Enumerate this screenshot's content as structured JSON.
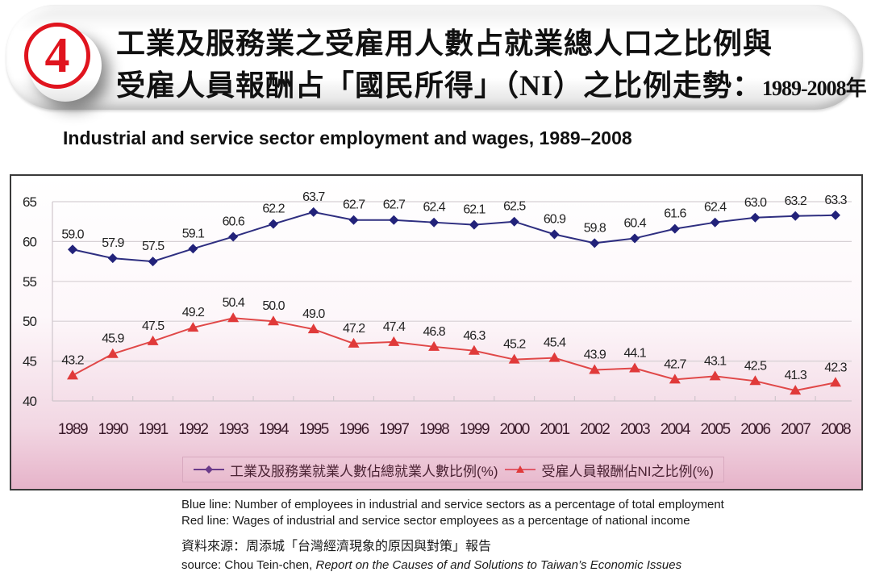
{
  "header": {
    "badge_number": "4",
    "title_line1": "工業及服務業之受雇用人數占就業總人口之比例與",
    "title_line2_prefix": "受雇人員報酬占「國民所得」（NI）之比例走勢：",
    "title_line2_years": "1989-2008年"
  },
  "title_en": "Industrial and service sector employment and wages, 1989–2008",
  "chart_data": {
    "type": "line",
    "title": "Industrial and service sector employment and wages, 1989–2008",
    "xlabel": "",
    "ylabel": "",
    "x": [
      "1989",
      "1990",
      "1991",
      "1992",
      "1993",
      "1994",
      "1995",
      "1996",
      "1997",
      "1998",
      "1999",
      "2000",
      "2001",
      "2002",
      "2003",
      "2004",
      "2005",
      "2006",
      "2007",
      "2008"
    ],
    "ylim": [
      40,
      65
    ],
    "yticks": [
      "65",
      "60",
      "55",
      "50",
      "45",
      "40"
    ],
    "grid": true,
    "legend_position": "bottom",
    "series": [
      {
        "name": "工業及服務業就業人數佔總就業人數比例(%)",
        "marker": "diamond",
        "color": "#2b2b7a",
        "values": [
          59.0,
          57.9,
          57.5,
          59.1,
          60.6,
          62.2,
          63.7,
          62.7,
          62.7,
          62.4,
          62.1,
          62.5,
          60.9,
          59.8,
          60.4,
          61.6,
          62.4,
          63.0,
          63.2,
          63.3
        ],
        "labels": [
          "59.0",
          "57.9",
          "57.5",
          "59.1",
          "60.6",
          "62.2",
          "63.7",
          "62.7",
          "62.7",
          "62.4",
          "62.1",
          "62.5",
          "60.9",
          "59.8",
          "60.4",
          "61.6",
          "62.4",
          "63.0",
          "63.2",
          "63.3"
        ]
      },
      {
        "name": "受雇人員報酬佔NI之比例(%)",
        "marker": "triangle",
        "color": "#e03a3a",
        "values": [
          43.2,
          45.9,
          47.5,
          49.2,
          50.4,
          50.0,
          49.0,
          47.2,
          47.4,
          46.8,
          46.3,
          45.2,
          45.4,
          43.9,
          44.1,
          42.7,
          43.1,
          42.5,
          41.3,
          42.3
        ],
        "labels": [
          "43.2",
          "45.9",
          "47.5",
          "49.2",
          "50.4",
          "50.0",
          "49.0",
          "47.2",
          "47.4",
          "46.8",
          "46.3",
          "45.2",
          "45.4",
          "43.9",
          "44.1",
          "42.7",
          "43.1",
          "42.5",
          "41.3",
          "42.3"
        ]
      }
    ]
  },
  "legend": {
    "item1": "工業及服務業就業人數佔總就業人數比例(%)",
    "item2": "受雇人員報酬佔NI之比例(%)"
  },
  "notes": {
    "blue": "Blue line: Number of employees in industrial and service sectors as a percentage of total employment",
    "red": "Red line: Wages of industrial and service sector employees as a percentage of national income"
  },
  "source": {
    "zh": "資料來源：周添城「台灣經濟現象的原因與對策」報告",
    "en_prefix": "source: Chou Tein-chen, ",
    "en_title": "Report on the Causes of and Solutions to Taiwan’s Economic Issues"
  }
}
